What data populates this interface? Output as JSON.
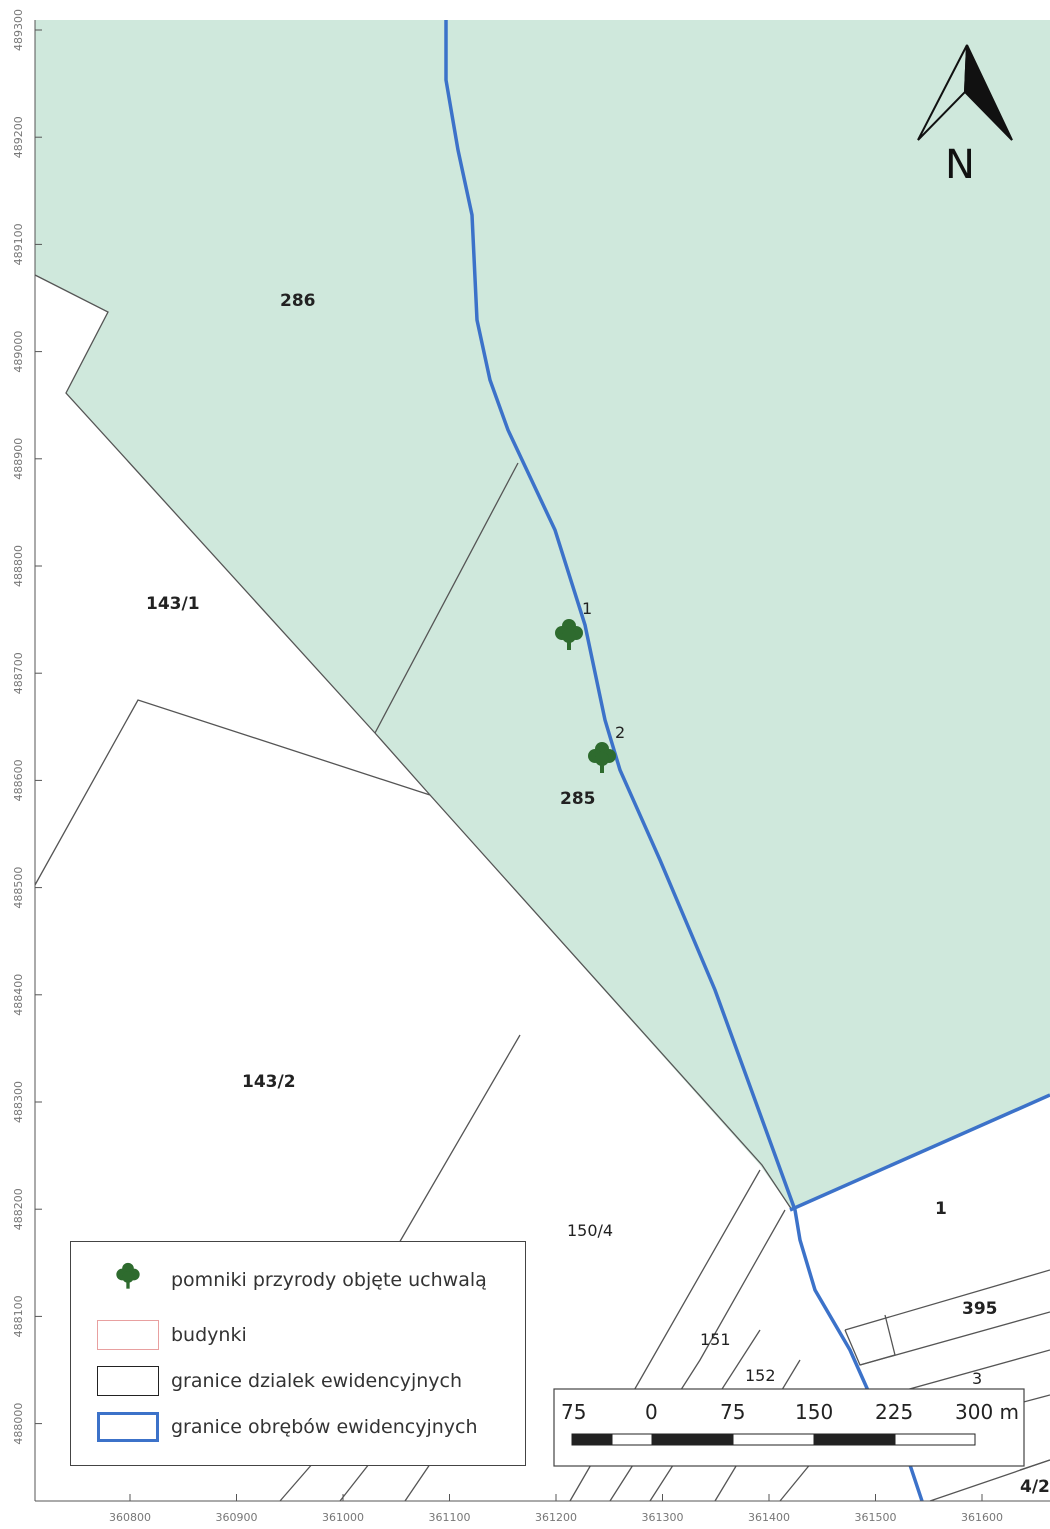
{
  "north_arrow": {
    "label": "N"
  },
  "axes": {
    "y_ticks": [
      "489300",
      "489200",
      "489100",
      "489000",
      "488900",
      "488800",
      "488700",
      "488600",
      "488500",
      "488400",
      "488300",
      "488200",
      "488100",
      "488000"
    ],
    "x_ticks": [
      "360800",
      "360900",
      "361000",
      "361100",
      "361200",
      "361300",
      "361400",
      "361500",
      "361600"
    ]
  },
  "parcels": {
    "p286": "286",
    "p285": "285",
    "p143_1": "143/1",
    "p143_2": "143/2",
    "p150_4": "150/4",
    "p1": "1",
    "p395": "395",
    "p151": "151",
    "p152": "152",
    "p3": "3",
    "p4_2": "4/2"
  },
  "trees": [
    {
      "number": "1"
    },
    {
      "number": "2"
    }
  ],
  "legend": {
    "items": [
      {
        "label": "pomniki przyrody objęte uchwalą",
        "symbol": "tree-icon"
      },
      {
        "label": "budynki",
        "symbol": "building-swatch"
      },
      {
        "label": "granice dzialek ewidencyjnych",
        "symbol": "parcel-boundary-swatch"
      },
      {
        "label": "granice obrębów ewidencyjnych",
        "symbol": "district-boundary-swatch"
      }
    ]
  },
  "scale_bar": {
    "labels": [
      "75",
      "0",
      "75",
      "150",
      "225",
      "300 m"
    ]
  },
  "colors": {
    "area_fill": "#cfe8dc",
    "district_boundary": "#3c72c9",
    "parcel_boundary": "#555555",
    "tree": "#2e6b2e"
  }
}
